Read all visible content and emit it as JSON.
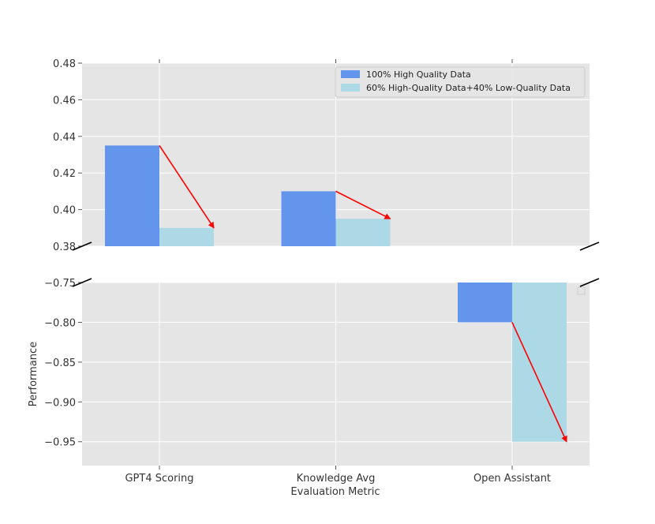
{
  "chart_data": {
    "type": "bar",
    "broken_y_axis": true,
    "xlabel": "Evaluation Metric",
    "ylabel": "Performance",
    "categories": [
      "GPT4 Scoring",
      "Knowledge Avg",
      "Open Assistant"
    ],
    "series": [
      {
        "name": "100% High Quality Data",
        "values": [
          0.435,
          0.41,
          -0.8
        ],
        "color": "#6495ED"
      },
      {
        "name": "60% High-Quality Data+40% Low-Quality Data",
        "values": [
          0.39,
          0.395,
          -0.95
        ],
        "color": "#ADD8E6"
      }
    ],
    "upper_panel": {
      "ylim": [
        0.38,
        0.48
      ],
      "yticks": [
        "0.38",
        "0.40",
        "0.42",
        "0.44",
        "0.46",
        "0.48"
      ]
    },
    "lower_panel": {
      "ylim": [
        -0.98,
        -0.75
      ],
      "yticks": [
        "−0.95",
        "−0.90",
        "−0.85",
        "−0.80",
        "−0.75"
      ]
    },
    "annotations": "red arrows from the 100% bar top to the 60%/40% bar top in each category",
    "grid": true,
    "legend_position": "upper right",
    "background": "#E5E5E5",
    "arrow_color": "#FF0000"
  }
}
